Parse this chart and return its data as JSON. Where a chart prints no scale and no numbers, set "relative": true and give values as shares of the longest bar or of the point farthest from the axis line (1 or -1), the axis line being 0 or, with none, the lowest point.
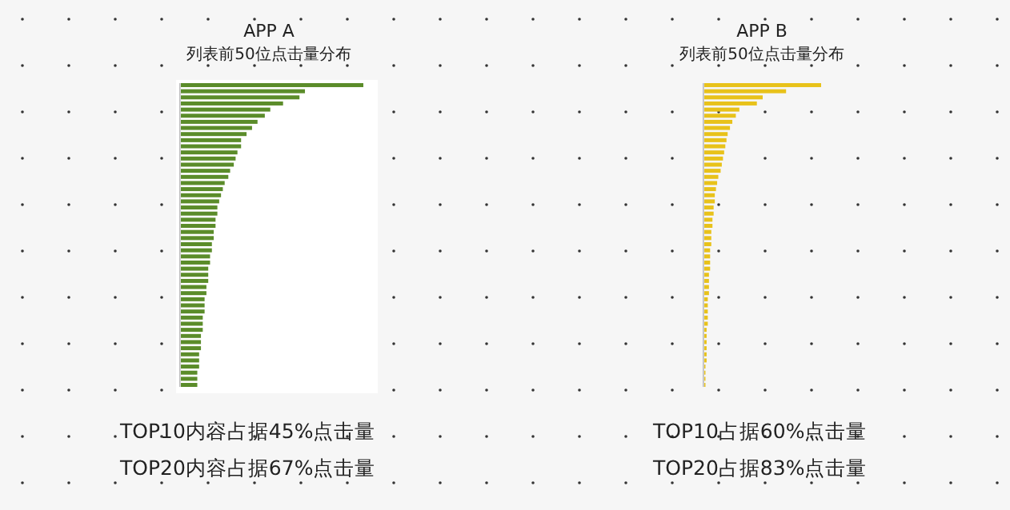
{
  "chart_data": [
    {
      "type": "bar",
      "orientation": "horizontal",
      "relative": true,
      "title": "APP A",
      "subtitle": "列表前50位点击量分布",
      "categories": [
        null,
        null,
        null,
        null,
        null,
        null,
        null,
        null,
        null,
        null,
        null,
        null,
        null,
        null,
        null,
        null,
        null,
        null,
        null,
        null,
        null,
        null,
        null,
        null,
        null,
        null,
        null,
        null,
        null,
        null,
        null,
        null,
        null,
        null,
        null,
        null,
        null,
        null,
        null,
        null,
        null,
        null,
        null,
        null,
        null,
        null,
        null,
        null,
        null,
        null
      ],
      "series": [
        {
          "color": "#5b8c2a",
          "values": [
            1,
            0.68,
            0.65,
            0.56,
            0.49,
            0.46,
            0.42,
            0.39,
            0.36,
            0.33,
            0.33,
            0.31,
            0.3,
            0.29,
            0.27,
            0.26,
            0.24,
            0.23,
            0.22,
            0.21,
            0.2,
            0.2,
            0.19,
            0.19,
            0.18,
            0.18,
            0.17,
            0.17,
            0.16,
            0.16,
            0.15,
            0.15,
            0.15,
            0.14,
            0.14,
            0.13,
            0.13,
            0.13,
            0.12,
            0.12,
            0.12,
            0.11,
            0.11,
            0.11,
            0.1,
            0.1,
            0.1,
            0.09,
            0.09,
            0.09
          ]
        }
      ],
      "annotations": [
        "TOP10内容占据45%点击量",
        "TOP20内容占据67%点击量"
      ]
    },
    {
      "type": "bar",
      "orientation": "horizontal",
      "relative": true,
      "title": "APP B",
      "subtitle": "列表前50位点击量分布",
      "categories": [
        null,
        null,
        null,
        null,
        null,
        null,
        null,
        null,
        null,
        null,
        null,
        null,
        null,
        null,
        null,
        null,
        null,
        null,
        null,
        null,
        null,
        null,
        null,
        null,
        null,
        null,
        null,
        null,
        null,
        null,
        null,
        null,
        null,
        null,
        null,
        null,
        null,
        null,
        null,
        null,
        null,
        null,
        null,
        null,
        null,
        null,
        null,
        null,
        null,
        null
      ],
      "series": [
        {
          "color": "#e8c21a",
          "values": [
            1,
            0.7,
            0.5,
            0.45,
            0.3,
            0.27,
            0.24,
            0.22,
            0.2,
            0.19,
            0.18,
            0.17,
            0.16,
            0.15,
            0.14,
            0.12,
            0.11,
            0.1,
            0.09,
            0.09,
            0.08,
            0.08,
            0.07,
            0.07,
            0.06,
            0.06,
            0.06,
            0.05,
            0.05,
            0.05,
            0.05,
            0.04,
            0.04,
            0.04,
            0.04,
            0.03,
            0.03,
            0.03,
            0.03,
            0.03,
            0.02,
            0.02,
            0.02,
            0.02,
            0.02,
            0.02,
            0.01,
            0.01,
            0.01,
            0.01
          ]
        }
      ],
      "annotations": [
        "TOP10占据60%点击量",
        "TOP20占据83%点击量"
      ]
    }
  ]
}
